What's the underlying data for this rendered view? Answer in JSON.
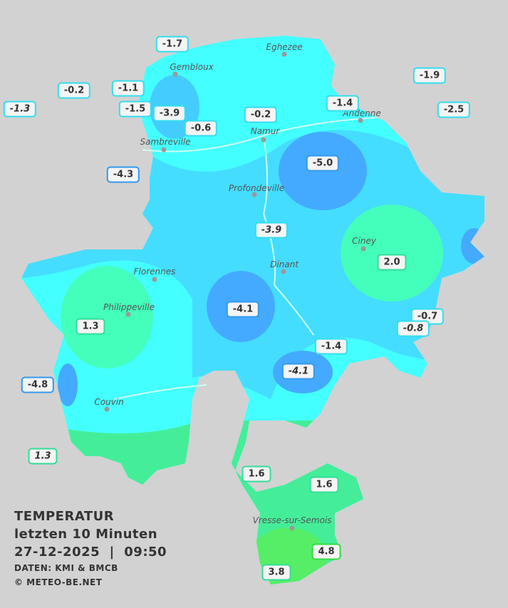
{
  "map": {
    "cities": [
      "Eghezee",
      "Gembloux",
      "Andenne",
      "Namur",
      "Sambreville",
      "Profondeville",
      "Ciney",
      "Dinant",
      "Florennes",
      "Philippeville",
      "Couvin",
      "Vresse-sur-Semois"
    ],
    "stations": [
      "-1.7",
      "-0.2",
      "-1.1",
      "-1.3",
      "-1.5",
      "-3.9",
      "-0.6",
      "-0.2",
      "-1.4",
      "-1.9",
      "-2.5",
      "-4.3",
      "-5.0",
      "-3.9",
      "2.0",
      "-4.1",
      "1.3",
      "-0.7",
      "-0.8",
      "-1.4",
      "-4.1",
      "-4.8",
      "1.3",
      "1.6",
      "1.6",
      "4.8",
      "3.8"
    ],
    "legend": {
      "title": "TEMPERATUR",
      "period": "letzten 10 Minuten",
      "datetime": "27-12-2025  |  09:50",
      "source": "DATEN: KMI & BMCB",
      "copyright": "© METEO-BE.NET"
    }
  }
}
